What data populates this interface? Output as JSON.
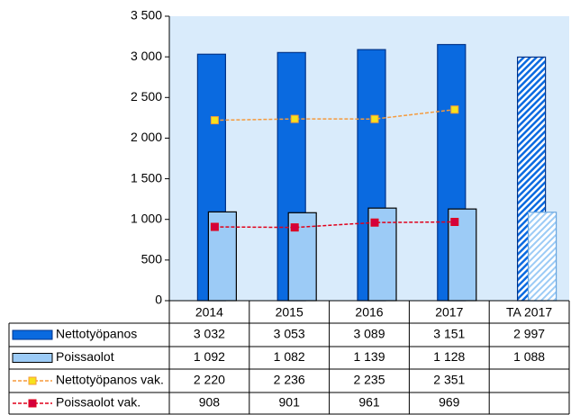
{
  "chart_data": {
    "type": "bar",
    "categories": [
      "2014",
      "2015",
      "2016",
      "2017",
      "TA 2017"
    ],
    "hatched": [
      false,
      false,
      false,
      false,
      true
    ],
    "series": [
      {
        "name": "Nettotyöpanos",
        "kind": "bar",
        "color": "#0a6ae0",
        "edge": "#00338a",
        "values": [
          3032,
          3053,
          3089,
          3151,
          2997
        ],
        "value_labels": [
          "3 032",
          "3 053",
          "3 089",
          "3 151",
          "2 997"
        ]
      },
      {
        "name": "Poissaolot",
        "kind": "bar",
        "color": "#9ccbf6",
        "edge": "#000000",
        "values": [
          1092,
          1082,
          1139,
          1128,
          1088
        ],
        "value_labels": [
          "1 092",
          "1 082",
          "1 139",
          "1 128",
          "1 088"
        ]
      },
      {
        "name": "Nettotyöpanos vak.",
        "kind": "line",
        "color": "#f59a3c",
        "marker": "#f7e21c",
        "values": [
          2220,
          2236,
          2235,
          2351,
          null
        ],
        "value_labels": [
          "2 220",
          "2 236",
          "2 235",
          "2 351",
          null
        ]
      },
      {
        "name": "Poissaolot vak.",
        "kind": "line",
        "color": "#e0001a",
        "marker": "#d4003c",
        "values": [
          908,
          901,
          961,
          969,
          null
        ]
      }
    ],
    "ylim": [
      0,
      3500
    ],
    "yticks": [
      0,
      500,
      {
        "value": 1000,
        "label": "1 000"
      },
      {
        "value": 1500,
        "label": "1 500"
      },
      {
        "value": 2000,
        "label": "2 000"
      },
      {
        "value": 2500,
        "label": "2 500"
      },
      {
        "value": 3000,
        "label": "3 000"
      },
      {
        "value": 3500,
        "label": "3 500"
      }
    ],
    "background": "#d9ebfb"
  }
}
